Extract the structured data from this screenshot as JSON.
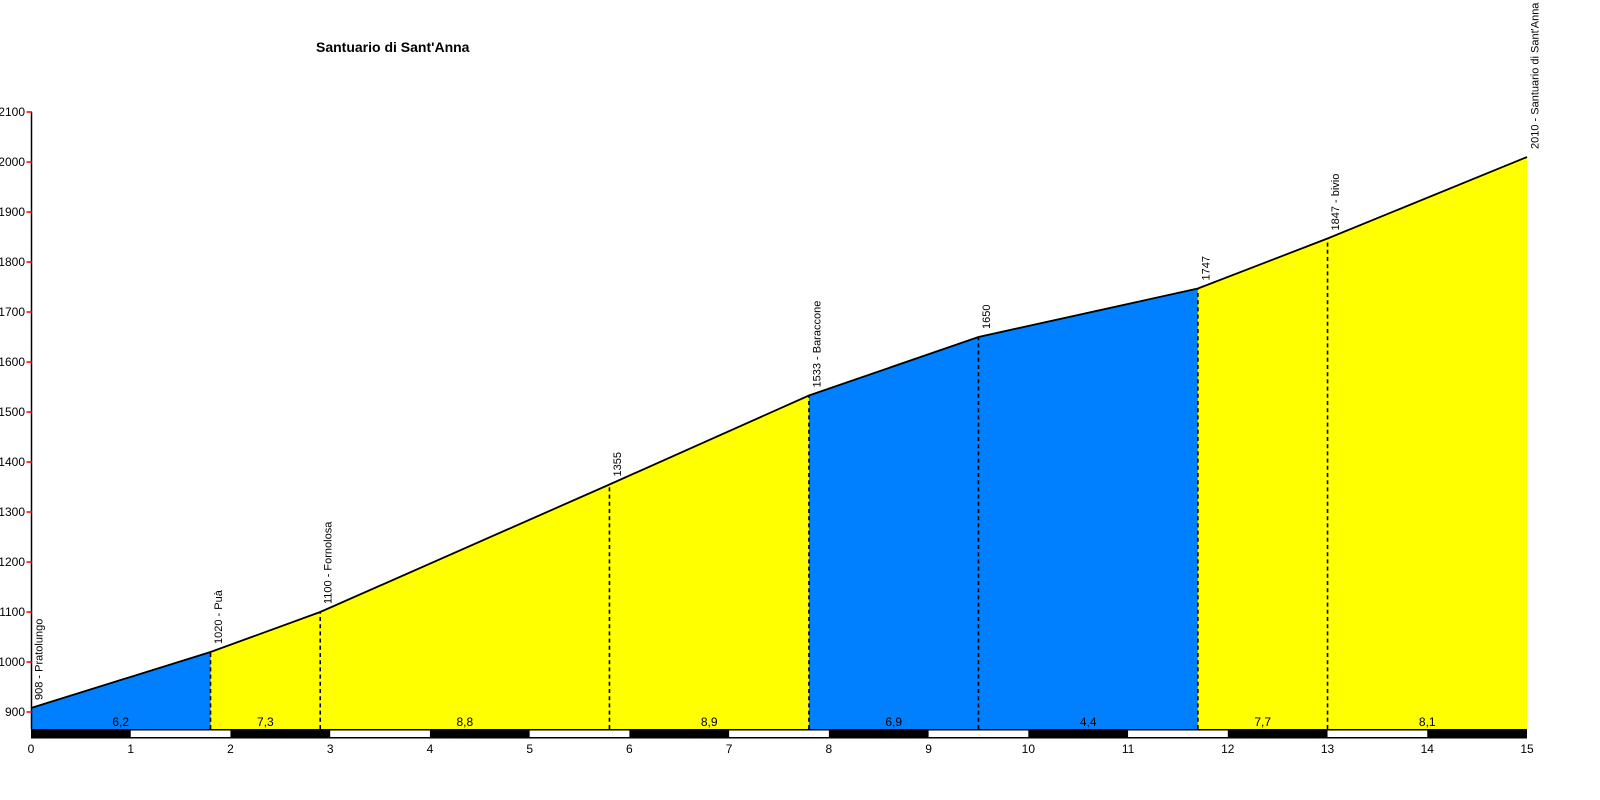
{
  "chart_data": {
    "type": "area",
    "title": "Santuario di Sant'Anna",
    "xlabel": "",
    "ylabel": "",
    "x_unit": "km",
    "y_unit": "m",
    "xlim": [
      0,
      15
    ],
    "ylim": [
      900,
      2100
    ],
    "y_tick_step": 100,
    "grid": false,
    "legend": null,
    "x_ticks": [
      0,
      1,
      2,
      3,
      4,
      5,
      6,
      7,
      8,
      9,
      10,
      11,
      12,
      13,
      14,
      15
    ],
    "y_ticks": [
      900,
      1000,
      1100,
      1200,
      1300,
      1400,
      1500,
      1600,
      1700,
      1800,
      1900,
      2000,
      2100
    ],
    "points": [
      {
        "km": 0.0,
        "ele": 908
      },
      {
        "km": 1.8,
        "ele": 1020
      },
      {
        "km": 2.9,
        "ele": 1100
      },
      {
        "km": 5.8,
        "ele": 1355
      },
      {
        "km": 7.8,
        "ele": 1533
      },
      {
        "km": 9.5,
        "ele": 1650
      },
      {
        "km": 11.7,
        "ele": 1747
      },
      {
        "km": 13.0,
        "ele": 1847
      },
      {
        "km": 15.0,
        "ele": 2010
      }
    ],
    "waypoints": [
      {
        "km": 0.0,
        "ele": 908,
        "label": "908 - Pratolungo"
      },
      {
        "km": 1.8,
        "ele": 1020,
        "label": "1020 - Puà"
      },
      {
        "km": 2.9,
        "ele": 1100,
        "label": "1100 - Fornolosa"
      },
      {
        "km": 5.8,
        "ele": 1355,
        "label": "1355"
      },
      {
        "km": 7.8,
        "ele": 1533,
        "label": "1533 - Baraccone"
      },
      {
        "km": 9.5,
        "ele": 1650,
        "label": "1650"
      },
      {
        "km": 11.7,
        "ele": 1747,
        "label": "1747"
      },
      {
        "km": 13.0,
        "ele": 1847,
        "label": "1847 - bivio"
      },
      {
        "km": 15.0,
        "ele": 2010,
        "label": "2010 - Santuario di Sant'Anna"
      }
    ],
    "segments": [
      {
        "from_km": 0.0,
        "to_km": 1.8,
        "gradient_label": "6,2",
        "color_key": "easy"
      },
      {
        "from_km": 1.8,
        "to_km": 2.9,
        "gradient_label": "7,3",
        "color_key": "steep"
      },
      {
        "from_km": 2.9,
        "to_km": 5.8,
        "gradient_label": "8,8",
        "color_key": "steep"
      },
      {
        "from_km": 5.8,
        "to_km": 7.8,
        "gradient_label": "8,9",
        "color_key": "steep"
      },
      {
        "from_km": 7.8,
        "to_km": 9.5,
        "gradient_label": "6,9",
        "color_key": "easy"
      },
      {
        "from_km": 9.5,
        "to_km": 11.7,
        "gradient_label": "4,4",
        "color_key": "easy"
      },
      {
        "from_km": 11.7,
        "to_km": 13.0,
        "gradient_label": "7,7",
        "color_key": "steep"
      },
      {
        "from_km": 13.0,
        "to_km": 15.0,
        "gradient_label": "8,1",
        "color_key": "steep"
      }
    ],
    "km_ruler": {
      "interval_km": 1,
      "even_color": "#000000",
      "odd_color": "#FFFFFF"
    },
    "colors": {
      "easy": "#0080FF",
      "steep": "#FFFF00",
      "profile_line": "#000000",
      "axis_line": "#000000",
      "tick": "#FF0000",
      "text": "#000000",
      "background": "#FFFFFF"
    }
  }
}
